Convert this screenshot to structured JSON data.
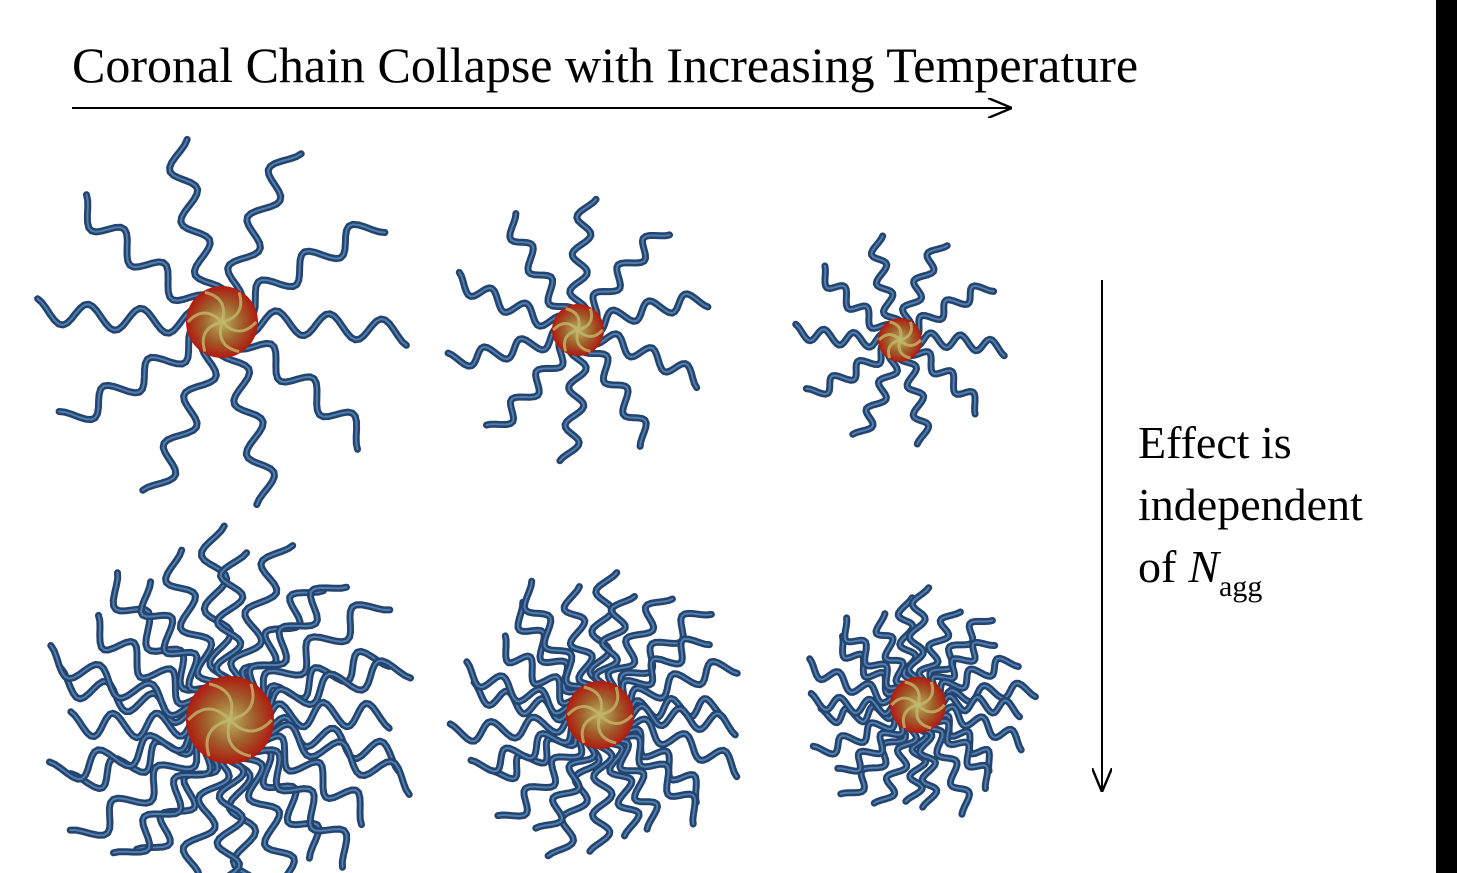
{
  "title": "Coronal Chain Collapse with Increasing Temperature",
  "side_note": {
    "line1": "Effect is",
    "line2": "independent",
    "line3": "of",
    "symbol": "N",
    "subscript": "agg"
  }
}
